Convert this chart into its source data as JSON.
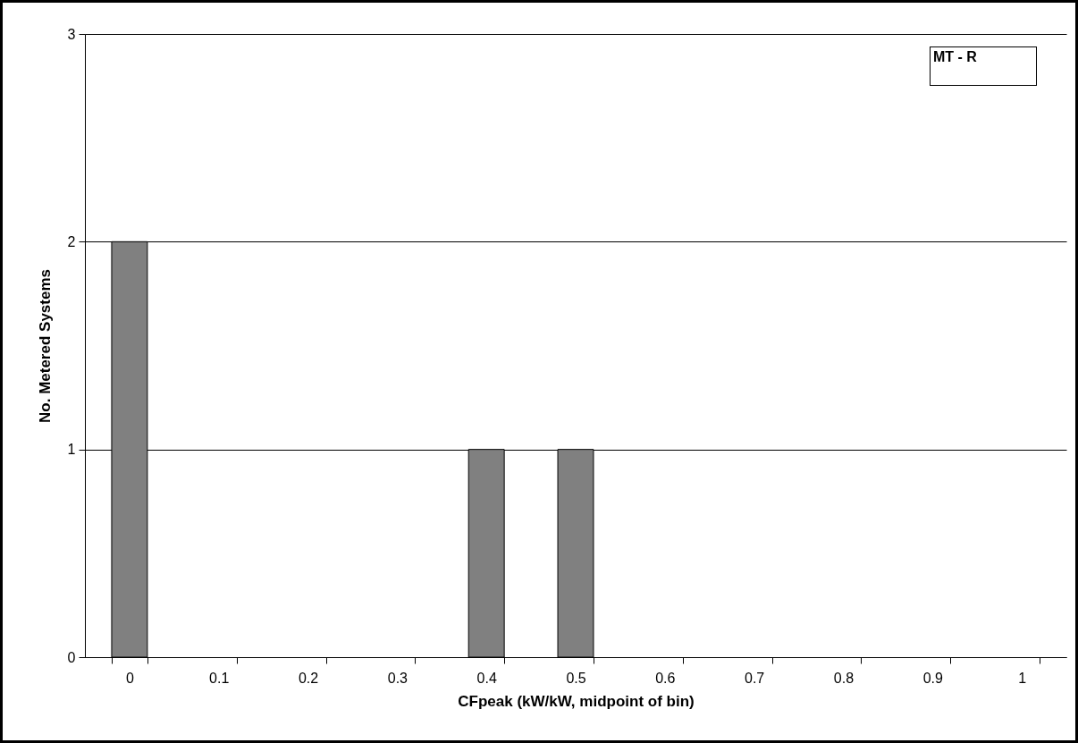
{
  "chart_data": {
    "type": "bar",
    "xlabel": "CFpeak (kW/kW, midpoint of bin)",
    "ylabel": "No. Metered Systems",
    "categories": [
      "0",
      "0.1",
      "0.2",
      "0.3",
      "0.4",
      "0.5",
      "0.6",
      "0.7",
      "0.8",
      "0.9",
      "1"
    ],
    "values": [
      2,
      0,
      0,
      0,
      1,
      1,
      0,
      0,
      0,
      0,
      0
    ],
    "color": "#808080",
    "ylim": [
      0,
      3
    ],
    "yticks": [
      0,
      1,
      2,
      3
    ],
    "grid": "y",
    "annotations": [
      "MT - R"
    ]
  }
}
